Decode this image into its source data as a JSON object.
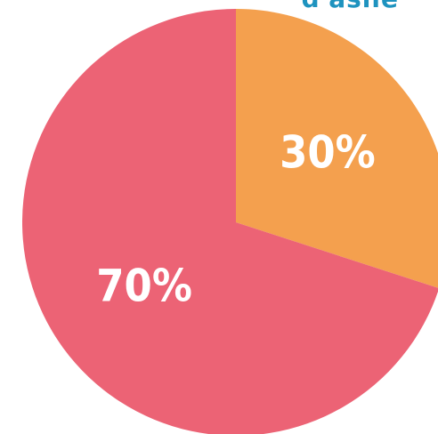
{
  "chart_data": {
    "type": "pie",
    "title_fragment": "d'asile",
    "slices": [
      {
        "label": "30%",
        "value": 30,
        "color": "#F4A04E"
      },
      {
        "label": "70%",
        "value": 70,
        "color": "#EC6375"
      }
    ],
    "title_color": "#1E93BF",
    "label_color": "#FFFFFF"
  }
}
